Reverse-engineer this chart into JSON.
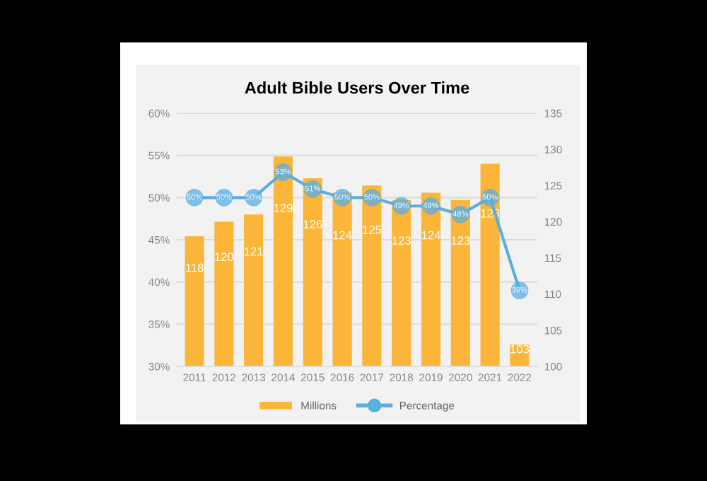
{
  "chart_data": {
    "type": "bar",
    "title": "Adult Bible Users Over Time",
    "categories": [
      "2011",
      "2012",
      "2013",
      "2014",
      "2015",
      "2016",
      "2017",
      "2018",
      "2019",
      "2020",
      "2021",
      "2022"
    ],
    "series": [
      {
        "name": "Millions",
        "axis": "y2",
        "color": "#fbb63a",
        "values": [
          118,
          120,
          121,
          129,
          126,
          124,
          125,
          123,
          124,
          123,
          128,
          103
        ]
      },
      {
        "name": "Percentage",
        "type": "line",
        "axis": "y",
        "color": "#5aaee0",
        "marker": "circle",
        "values": [
          50,
          50,
          50,
          53,
          51,
          50,
          50,
          49,
          49,
          48,
          50,
          39
        ],
        "value_labels": [
          "50%",
          "50%",
          "50%",
          "53%",
          "51%",
          "50%",
          "50%",
          "49%",
          "49%",
          "48%",
          "50%",
          "39%"
        ]
      }
    ],
    "ylim": [
      30,
      60
    ],
    "yticks": [
      {
        "value": 30,
        "label": "30%"
      },
      {
        "value": 35,
        "label": "35%"
      },
      {
        "value": 40,
        "label": "40%"
      },
      {
        "value": 45,
        "label": "45%"
      },
      {
        "value": 50,
        "label": "50%"
      },
      {
        "value": 55,
        "label": "55%"
      },
      {
        "value": 60,
        "label": "60%"
      }
    ],
    "y2lim": [
      100,
      135
    ],
    "y2ticks": [
      100,
      105,
      110,
      115,
      120,
      125,
      130,
      135
    ],
    "grid": "y",
    "legend": "bottom",
    "data_labels": true
  }
}
